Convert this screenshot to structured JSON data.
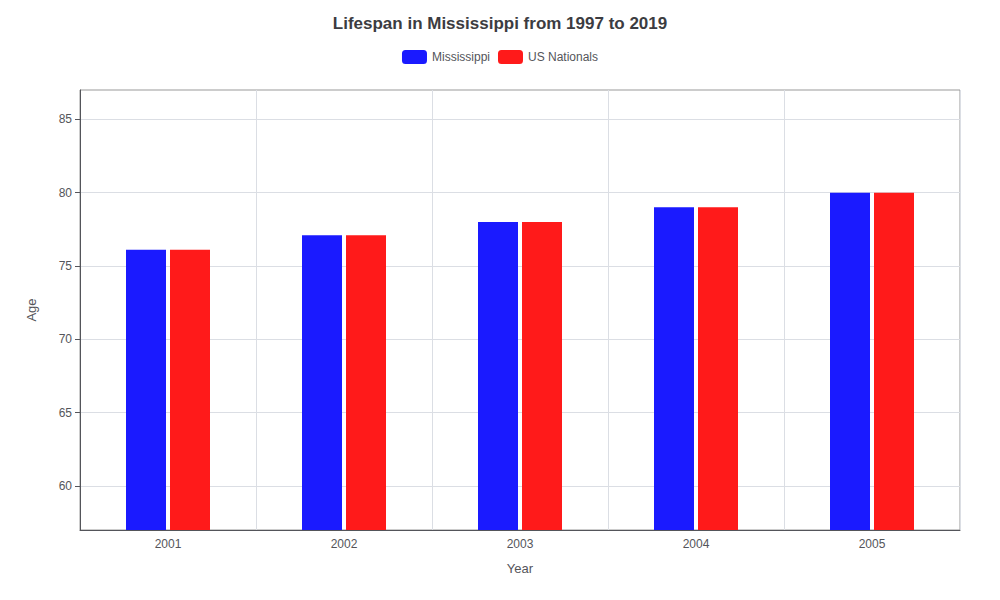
{
  "chart_data": {
    "type": "bar",
    "title": "Lifespan in Mississippi from 1997 to 2019",
    "xlabel": "Year",
    "ylabel": "Age",
    "categories": [
      "2001",
      "2002",
      "2003",
      "2004",
      "2005"
    ],
    "series": [
      {
        "name": "Mississippi",
        "color": "#1a1aff",
        "values": [
          76.1,
          77.1,
          78.0,
          79.0,
          80.0
        ]
      },
      {
        "name": "US Nationals",
        "color": "#ff1a1a",
        "values": [
          76.1,
          77.1,
          78.0,
          79.0,
          80.0
        ]
      }
    ],
    "ylim": [
      57,
      87
    ],
    "yticks": [
      60,
      65,
      70,
      75,
      80,
      85
    ],
    "grid": true,
    "legend": "top"
  }
}
